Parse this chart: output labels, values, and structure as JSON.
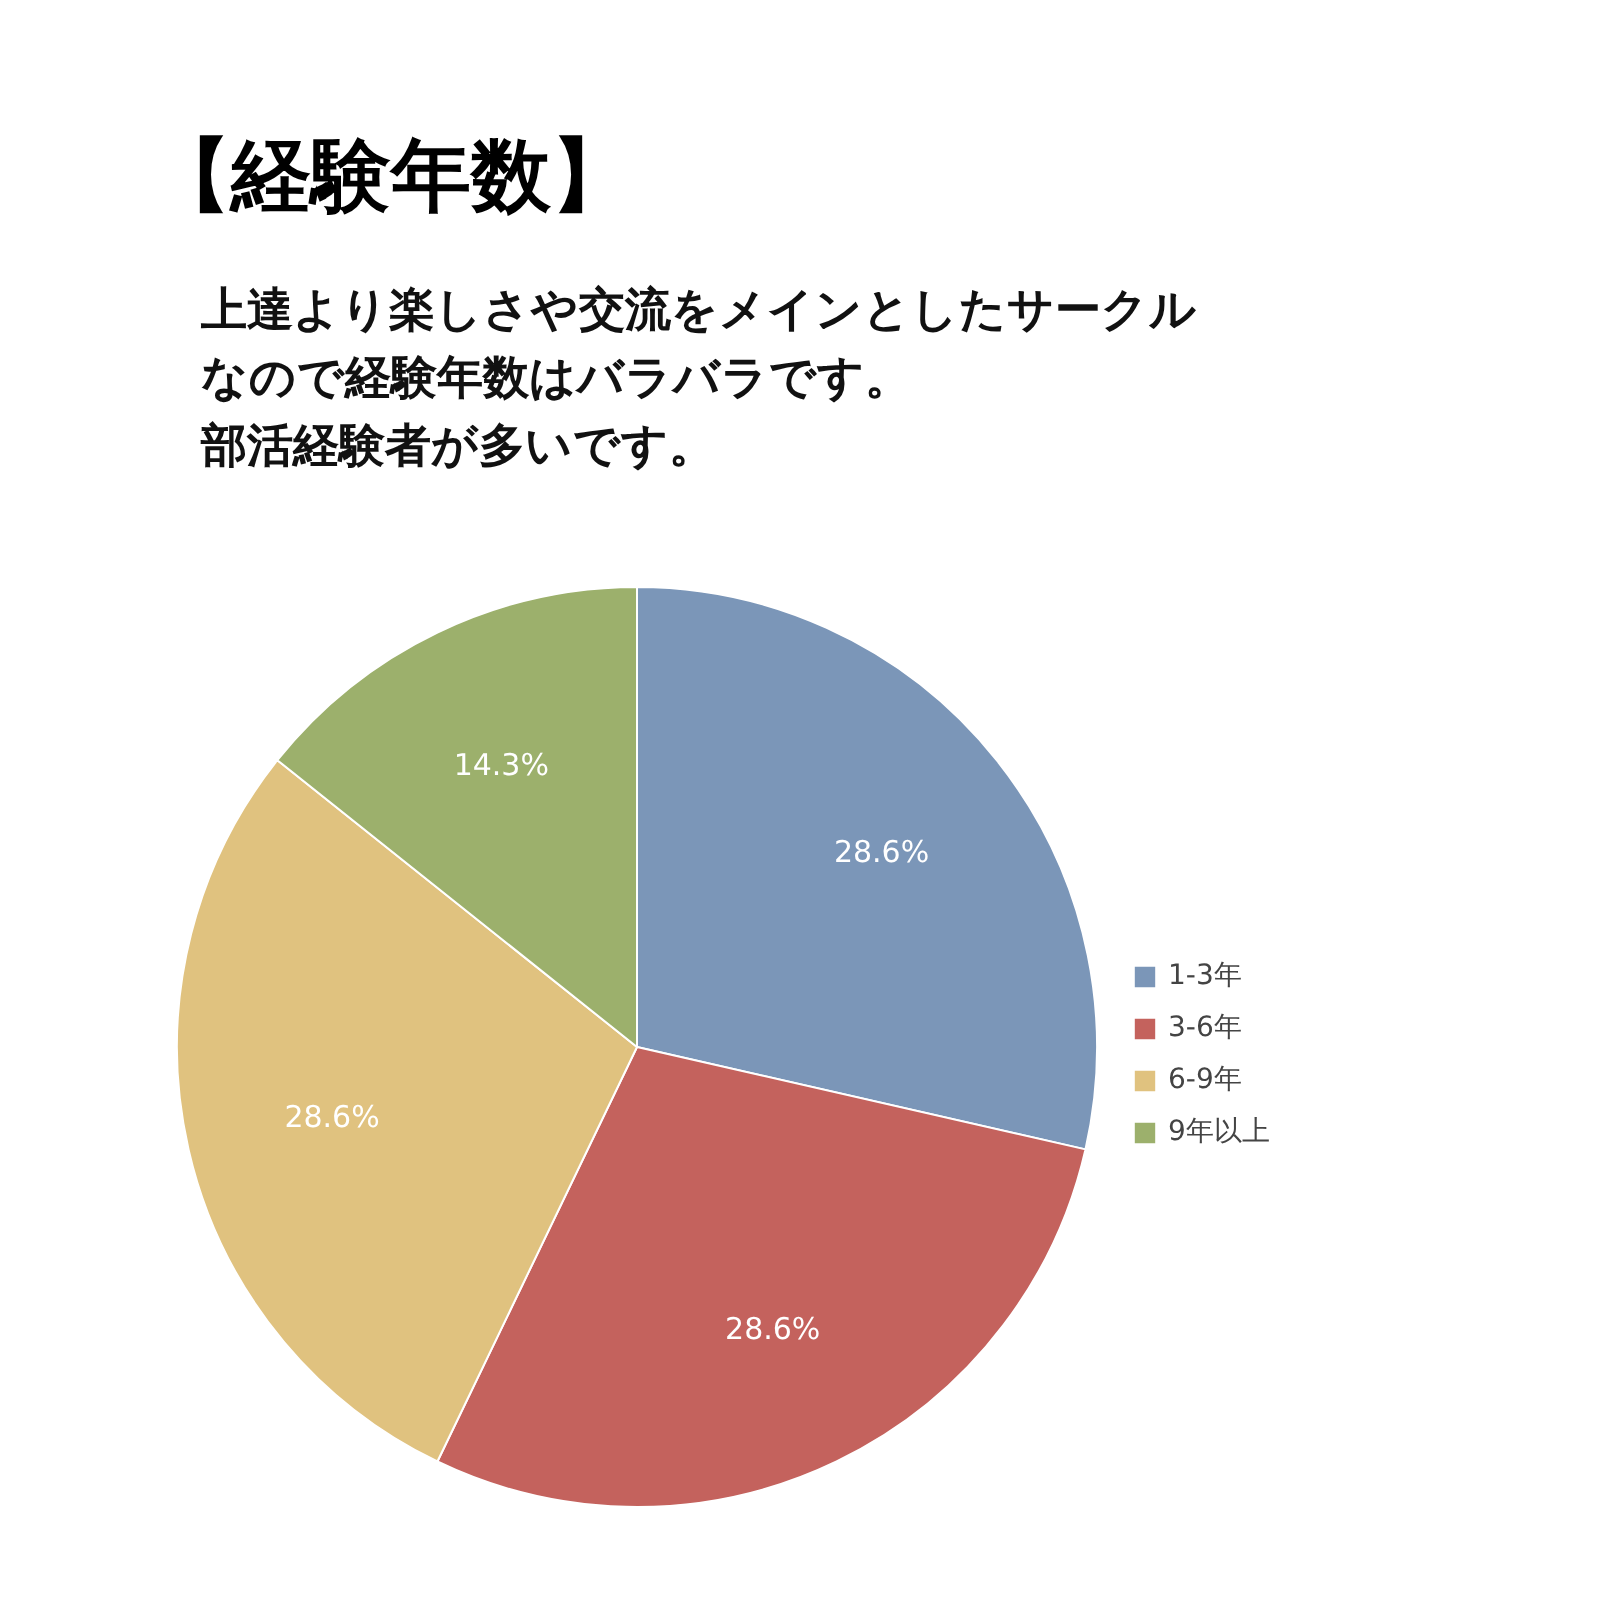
{
  "chart_data": {
    "type": "pie",
    "title": "【経験年数】",
    "subtitle": [
      "上達より楽しさや交流をメインとしたサークル",
      "なので経験年数はバラバラです。",
      "部活経験者が多いです。"
    ],
    "categories": [
      "1-3年",
      "3-6年",
      "6-9年",
      "9年以上"
    ],
    "values": [
      28.6,
      28.6,
      28.6,
      14.3
    ],
    "colors": [
      "#7b96b8",
      "#c4625d",
      "#e0c27f",
      "#9cb06c"
    ],
    "value_labels": [
      "28.6%",
      "28.6%",
      "28.6%",
      "14.3%"
    ],
    "legend": "right"
  }
}
